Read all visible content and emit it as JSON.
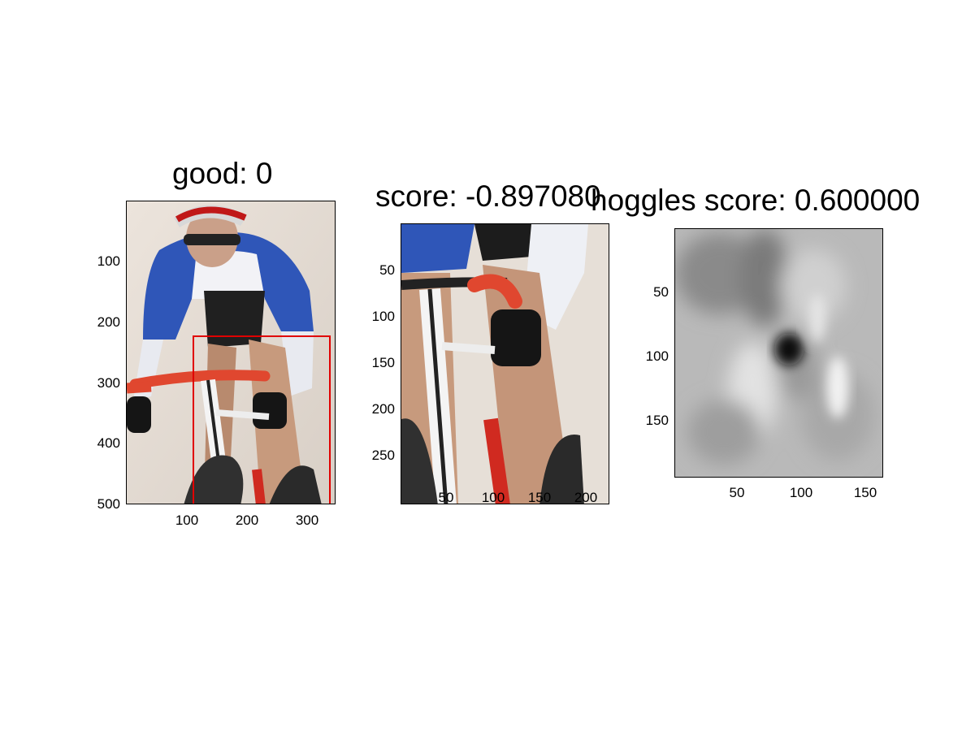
{
  "panels": [
    {
      "title": "good: 0",
      "image": "cyclist-photo",
      "x_ticks": [
        "100",
        "200",
        "300"
      ],
      "y_ticks": [
        "100",
        "200",
        "300",
        "400",
        "500"
      ],
      "bbox_color": "#e00000"
    },
    {
      "title": "score: -0.897080",
      "image": "cropped-cyclist-photo",
      "x_ticks": [
        "50",
        "100",
        "150",
        "200"
      ],
      "y_ticks": [
        "50",
        "100",
        "150",
        "200",
        "250"
      ]
    },
    {
      "title": "hoggles score: 0.600000",
      "image": "grayscale-hoggles-visualization",
      "x_ticks": [
        "50",
        "100",
        "150"
      ],
      "y_ticks": [
        "50",
        "100",
        "150"
      ]
    }
  ]
}
